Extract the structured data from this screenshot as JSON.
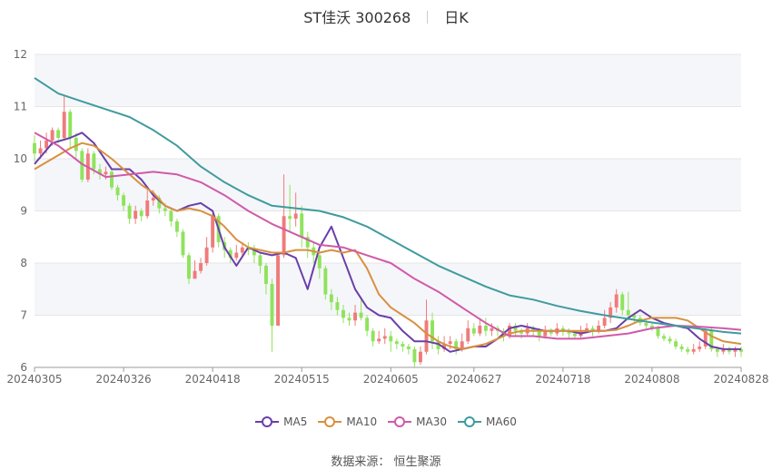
{
  "header": {
    "name": "ST佳沃 300268",
    "period": "日K"
  },
  "source": "数据来源： 恒生聚源",
  "chart_data": {
    "type": "candlestick",
    "y_ticks": [
      6,
      7,
      8,
      9,
      10,
      11,
      12
    ],
    "ylim": [
      6,
      12
    ],
    "x_ticks": [
      "20240305",
      "20240326",
      "20240418",
      "20240515",
      "20240605",
      "20240627",
      "20240718",
      "20240808",
      "20240828"
    ],
    "trading_days": 120,
    "colors": {
      "up": "#f07b7b",
      "down": "#8fe35c",
      "grid": "#e5e5e5",
      "band": "#f5f6fa"
    },
    "legend": [
      {
        "name": "MA5",
        "color": "#6a3fa8"
      },
      {
        "name": "MA10",
        "color": "#d8903f"
      },
      {
        "name": "MA30",
        "color": "#d05aa8"
      },
      {
        "name": "MA60",
        "color": "#3f9b9e"
      }
    ],
    "series": [
      {
        "name": "MA5",
        "x": [
          0,
          3,
          6,
          8,
          10,
          13,
          16,
          18,
          20,
          22,
          24,
          26,
          28,
          30,
          32,
          34,
          36,
          38,
          40,
          42,
          44,
          46,
          48,
          50,
          52,
          54,
          56,
          58,
          60,
          62,
          64,
          66,
          68,
          70,
          72,
          74,
          76,
          78,
          80,
          82,
          84,
          86,
          88,
          90,
          92,
          94,
          96,
          98,
          100,
          102,
          104,
          106,
          108,
          110,
          112,
          114,
          116,
          119
        ],
        "y": [
          9.9,
          10.3,
          10.4,
          10.5,
          10.3,
          9.8,
          9.8,
          9.6,
          9.3,
          9.1,
          9.0,
          9.1,
          9.15,
          9.0,
          8.3,
          7.95,
          8.3,
          8.2,
          8.15,
          8.2,
          8.1,
          7.5,
          8.3,
          8.7,
          8.1,
          7.5,
          7.15,
          7.0,
          6.95,
          6.7,
          6.5,
          6.5,
          6.45,
          6.3,
          6.35,
          6.4,
          6.4,
          6.55,
          6.75,
          6.8,
          6.75,
          6.7,
          6.7,
          6.7,
          6.65,
          6.7,
          6.7,
          6.75,
          6.95,
          7.1,
          6.95,
          6.85,
          6.8,
          6.75,
          6.55,
          6.4,
          6.35,
          6.35
        ]
      },
      {
        "name": "MA10",
        "x": [
          0,
          3,
          6,
          8,
          10,
          13,
          16,
          18,
          20,
          22,
          24,
          26,
          28,
          30,
          32,
          34,
          36,
          38,
          40,
          42,
          44,
          46,
          48,
          50,
          52,
          54,
          56,
          58,
          60,
          62,
          64,
          66,
          68,
          70,
          72,
          74,
          76,
          78,
          80,
          82,
          84,
          86,
          88,
          90,
          92,
          94,
          96,
          98,
          100,
          102,
          104,
          106,
          108,
          110,
          112,
          114,
          116,
          119
        ],
        "y": [
          9.8,
          10.0,
          10.2,
          10.3,
          10.25,
          10.0,
          9.7,
          9.5,
          9.35,
          9.1,
          9.0,
          9.05,
          9.0,
          8.9,
          8.7,
          8.45,
          8.3,
          8.25,
          8.2,
          8.2,
          8.25,
          8.25,
          8.2,
          8.25,
          8.2,
          8.25,
          7.9,
          7.4,
          7.15,
          7.0,
          6.85,
          6.65,
          6.5,
          6.4,
          6.35,
          6.4,
          6.45,
          6.55,
          6.65,
          6.7,
          6.7,
          6.7,
          6.7,
          6.7,
          6.7,
          6.7,
          6.7,
          6.72,
          6.8,
          6.9,
          6.95,
          6.95,
          6.95,
          6.9,
          6.75,
          6.6,
          6.5,
          6.45
        ]
      },
      {
        "name": "MA30",
        "x": [
          0,
          4,
          8,
          12,
          16,
          20,
          24,
          28,
          32,
          36,
          40,
          44,
          48,
          52,
          56,
          60,
          64,
          68,
          72,
          76,
          80,
          84,
          88,
          92,
          96,
          100,
          104,
          108,
          112,
          116,
          119
        ],
        "y": [
          10.5,
          10.25,
          9.9,
          9.65,
          9.7,
          9.75,
          9.7,
          9.55,
          9.3,
          9.0,
          8.75,
          8.55,
          8.35,
          8.3,
          8.15,
          8.0,
          7.7,
          7.45,
          7.15,
          6.85,
          6.6,
          6.6,
          6.55,
          6.55,
          6.6,
          6.65,
          6.75,
          6.8,
          6.78,
          6.75,
          6.72
        ]
      },
      {
        "name": "MA60",
        "x": [
          0,
          4,
          8,
          12,
          16,
          20,
          24,
          28,
          32,
          36,
          40,
          44,
          48,
          52,
          56,
          60,
          64,
          68,
          72,
          76,
          80,
          84,
          88,
          92,
          96,
          100,
          104,
          108,
          112,
          116,
          119
        ],
        "y": [
          11.55,
          11.25,
          11.1,
          10.95,
          10.8,
          10.55,
          10.25,
          9.85,
          9.55,
          9.3,
          9.1,
          9.05,
          9.0,
          8.88,
          8.7,
          8.45,
          8.2,
          7.95,
          7.75,
          7.55,
          7.38,
          7.3,
          7.18,
          7.08,
          7.0,
          6.93,
          6.86,
          6.8,
          6.74,
          6.68,
          6.65
        ]
      }
    ],
    "candles": [
      [
        10.3,
        10.1,
        10.45,
        9.95
      ],
      [
        10.1,
        10.2,
        10.35,
        10.0
      ],
      [
        10.2,
        10.35,
        10.5,
        10.1
      ],
      [
        10.35,
        10.55,
        10.6,
        10.25
      ],
      [
        10.55,
        10.4,
        10.6,
        10.3
      ],
      [
        10.4,
        10.9,
        11.2,
        10.35
      ],
      [
        10.9,
        10.4,
        10.95,
        10.2
      ],
      [
        10.4,
        10.15,
        10.5,
        10.0
      ],
      [
        10.15,
        9.6,
        10.2,
        9.55
      ],
      [
        9.6,
        10.1,
        10.2,
        9.55
      ],
      [
        10.1,
        9.8,
        10.15,
        9.7
      ],
      [
        9.8,
        9.7,
        9.9,
        9.6
      ],
      [
        9.7,
        9.75,
        9.85,
        9.6
      ],
      [
        9.75,
        9.45,
        9.8,
        9.4
      ],
      [
        9.45,
        9.3,
        9.5,
        9.2
      ],
      [
        9.3,
        9.1,
        9.35,
        9.0
      ],
      [
        9.1,
        8.85,
        9.15,
        8.75
      ],
      [
        8.85,
        9.0,
        9.1,
        8.75
      ],
      [
        9.0,
        8.9,
        9.05,
        8.8
      ],
      [
        8.9,
        9.2,
        9.4,
        8.85
      ],
      [
        9.2,
        9.25,
        9.4,
        9.1
      ],
      [
        9.25,
        9.05,
        9.3,
        8.95
      ],
      [
        9.05,
        9.0,
        9.15,
        8.9
      ],
      [
        9.0,
        8.8,
        9.05,
        8.7
      ],
      [
        8.8,
        8.6,
        8.85,
        8.5
      ],
      [
        8.6,
        8.15,
        8.65,
        8.1
      ],
      [
        8.15,
        7.7,
        8.2,
        7.6
      ],
      [
        7.7,
        7.85,
        8.05,
        7.7
      ],
      [
        7.85,
        8.0,
        8.1,
        7.8
      ],
      [
        8.0,
        8.3,
        8.5,
        7.95
      ],
      [
        8.3,
        8.9,
        8.95,
        8.2
      ],
      [
        8.9,
        8.4,
        8.95,
        8.3
      ],
      [
        8.4,
        8.25,
        8.5,
        8.1
      ],
      [
        8.25,
        8.1,
        8.3,
        8.0
      ],
      [
        8.1,
        8.2,
        8.35,
        8.05
      ],
      [
        8.2,
        8.3,
        8.4,
        8.1
      ],
      [
        8.3,
        8.25,
        8.4,
        8.15
      ],
      [
        8.25,
        8.15,
        8.35,
        8.0
      ],
      [
        8.15,
        7.95,
        8.2,
        7.8
      ],
      [
        7.95,
        7.6,
        8.0,
        7.4
      ],
      [
        7.6,
        6.8,
        7.7,
        6.3
      ],
      [
        6.8,
        8.15,
        8.2,
        6.8
      ],
      [
        8.15,
        8.9,
        9.7,
        8.1
      ],
      [
        8.9,
        8.85,
        9.5,
        8.6
      ],
      [
        8.85,
        8.95,
        9.35,
        8.7
      ],
      [
        8.95,
        8.5,
        9.1,
        8.3
      ],
      [
        8.5,
        8.3,
        8.6,
        8.1
      ],
      [
        8.3,
        8.15,
        8.4,
        8.0
      ],
      [
        8.15,
        7.9,
        8.2,
        7.7
      ],
      [
        7.9,
        7.4,
        7.95,
        7.3
      ],
      [
        7.4,
        7.25,
        7.5,
        7.1
      ],
      [
        7.25,
        7.1,
        7.35,
        7.0
      ],
      [
        7.1,
        6.95,
        7.2,
        6.85
      ],
      [
        6.95,
        6.9,
        7.05,
        6.8
      ],
      [
        6.9,
        7.05,
        7.2,
        6.8
      ],
      [
        7.05,
        6.95,
        7.35,
        6.9
      ],
      [
        6.95,
        6.7,
        7.0,
        6.6
      ],
      [
        6.7,
        6.5,
        6.75,
        6.4
      ],
      [
        6.5,
        6.55,
        6.7,
        6.45
      ],
      [
        6.55,
        6.6,
        6.75,
        6.45
      ],
      [
        6.6,
        6.5,
        6.7,
        6.3
      ],
      [
        6.5,
        6.45,
        6.55,
        6.35
      ],
      [
        6.45,
        6.4,
        6.5,
        6.3
      ],
      [
        6.4,
        6.35,
        6.45,
        6.25
      ],
      [
        6.35,
        6.1,
        6.4,
        6.0
      ],
      [
        6.1,
        6.3,
        6.4,
        6.05
      ],
      [
        6.3,
        6.9,
        7.3,
        6.25
      ],
      [
        6.9,
        6.5,
        7.05,
        6.35
      ],
      [
        6.5,
        6.35,
        6.6,
        6.25
      ],
      [
        6.35,
        6.45,
        6.6,
        6.3
      ],
      [
        6.45,
        6.5,
        6.6,
        6.35
      ],
      [
        6.5,
        6.35,
        6.55,
        6.25
      ],
      [
        6.35,
        6.5,
        6.65,
        6.3
      ],
      [
        6.5,
        6.75,
        6.9,
        6.45
      ],
      [
        6.75,
        6.65,
        6.85,
        6.6
      ],
      [
        6.65,
        6.8,
        6.95,
        6.6
      ],
      [
        6.8,
        6.7,
        6.95,
        6.6
      ],
      [
        6.7,
        6.75,
        6.85,
        6.6
      ],
      [
        6.75,
        6.7,
        6.8,
        6.6
      ],
      [
        6.7,
        6.6,
        6.75,
        6.5
      ],
      [
        6.6,
        6.8,
        6.85,
        6.55
      ],
      [
        6.8,
        6.7,
        6.85,
        6.6
      ],
      [
        6.7,
        6.65,
        6.75,
        6.55
      ],
      [
        6.65,
        6.75,
        6.85,
        6.6
      ],
      [
        6.75,
        6.7,
        6.8,
        6.6
      ],
      [
        6.7,
        6.6,
        6.75,
        6.5
      ],
      [
        6.6,
        6.7,
        6.8,
        6.55
      ],
      [
        6.7,
        6.65,
        6.75,
        6.6
      ],
      [
        6.65,
        6.75,
        6.85,
        6.6
      ],
      [
        6.75,
        6.7,
        6.8,
        6.6
      ],
      [
        6.7,
        6.65,
        6.75,
        6.55
      ],
      [
        6.65,
        6.6,
        6.7,
        6.55
      ],
      [
        6.6,
        6.7,
        6.8,
        6.55
      ],
      [
        6.7,
        6.75,
        6.85,
        6.65
      ],
      [
        6.75,
        6.7,
        6.8,
        6.6
      ],
      [
        6.7,
        6.8,
        6.9,
        6.65
      ],
      [
        6.8,
        6.95,
        7.1,
        6.75
      ],
      [
        6.95,
        7.15,
        7.25,
        6.85
      ],
      [
        7.15,
        7.4,
        7.5,
        7.05
      ],
      [
        7.4,
        7.1,
        7.45,
        7.0
      ],
      [
        7.1,
        7.0,
        7.45,
        6.9
      ],
      [
        7.0,
        6.95,
        7.05,
        6.85
      ],
      [
        6.95,
        6.85,
        7.0,
        6.8
      ],
      [
        6.85,
        6.8,
        6.9,
        6.75
      ],
      [
        6.8,
        6.75,
        6.85,
        6.7
      ],
      [
        6.75,
        6.6,
        6.8,
        6.55
      ],
      [
        6.6,
        6.55,
        6.65,
        6.5
      ],
      [
        6.55,
        6.5,
        6.6,
        6.45
      ],
      [
        6.5,
        6.4,
        6.55,
        6.35
      ],
      [
        6.4,
        6.35,
        6.45,
        6.3
      ],
      [
        6.35,
        6.3,
        6.4,
        6.25
      ],
      [
        6.3,
        6.35,
        6.45,
        6.25
      ],
      [
        6.35,
        6.4,
        6.5,
        6.3
      ],
      [
        6.4,
        6.7,
        6.75,
        6.35
      ],
      [
        6.7,
        6.35,
        6.75,
        6.3
      ],
      [
        6.35,
        6.3,
        6.4,
        6.2
      ],
      [
        6.3,
        6.35,
        6.45,
        6.25
      ],
      [
        6.35,
        6.3,
        6.4,
        6.25
      ],
      [
        6.3,
        6.35,
        6.4,
        6.2
      ],
      [
        6.35,
        6.3,
        6.4,
        6.2
      ]
    ]
  }
}
